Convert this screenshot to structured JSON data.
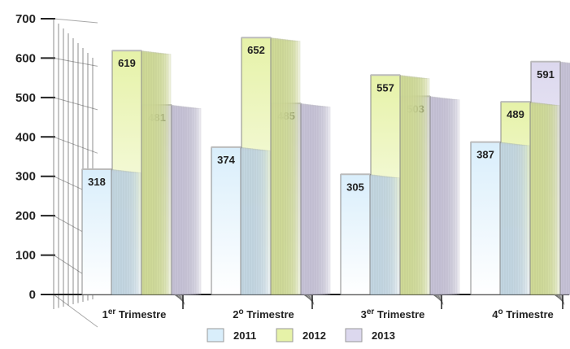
{
  "chart_data": {
    "type": "bar",
    "title": "",
    "xlabel": "",
    "ylabel": "",
    "ylim": [
      0,
      700
    ],
    "yticks": [
      0,
      100,
      200,
      300,
      400,
      500,
      600,
      700
    ],
    "grid": false,
    "legend_position": "bottom",
    "categories": [
      {
        "base": "1",
        "sup": "er",
        "rest": " Trimestre"
      },
      {
        "base": "2",
        "sup": "o",
        "rest": " Trimestre"
      },
      {
        "base": "3",
        "sup": "er",
        "rest": " Trimestre"
      },
      {
        "base": "4",
        "sup": "o",
        "rest": " Trimestre"
      }
    ],
    "series": [
      {
        "name": "2011",
        "values": [
          318,
          374,
          305,
          387
        ],
        "color": "#d9eefb"
      },
      {
        "name": "2012",
        "values": [
          619,
          652,
          557,
          489
        ],
        "color": "#e6f2a8"
      },
      {
        "name": "2013",
        "values": [
          481,
          485,
          503,
          591
        ],
        "color": "#dcd8ee"
      }
    ]
  }
}
